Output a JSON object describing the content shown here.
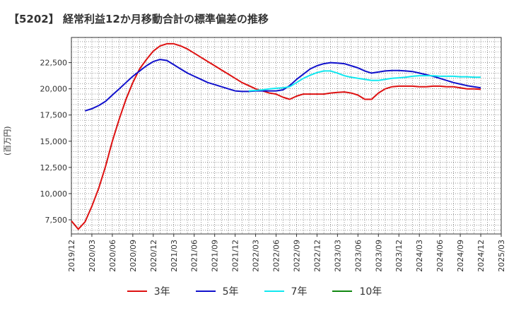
{
  "title": "【5202】 経常利益12か月移動合計の標準偏差の推移",
  "ylabel": "(百万円)",
  "chart_data": {
    "type": "line",
    "title": "【5202】 経常利益12か月移動合計の標準偏差の推移",
    "xlabel": "",
    "ylabel": "(百万円)",
    "x_tick_labels": [
      "2019/12",
      "2020/03",
      "2020/06",
      "2020/09",
      "2020/12",
      "2021/03",
      "2021/06",
      "2021/09",
      "2021/12",
      "2022/03",
      "2022/06",
      "2022/09",
      "2022/12",
      "2023/03",
      "2023/06",
      "2023/09",
      "2023/12",
      "2024/03",
      "2024/06",
      "2024/09",
      "2024/12",
      "2025/03"
    ],
    "x_range": [
      "2019/12",
      "2025/03"
    ],
    "y_ticks": [
      7500,
      10000,
      12500,
      15000,
      17500,
      20000,
      22500
    ],
    "y_tick_labels": [
      "7,500",
      "10,000",
      "12,500",
      "15,000",
      "17,500",
      "20,000",
      "22,500"
    ],
    "ylim": [
      6150,
      24900
    ],
    "grid": true,
    "legend_position": "bottom",
    "series": [
      {
        "name": "3年",
        "color": "#dd1111",
        "points": [
          [
            "2019/12",
            7400
          ],
          [
            "2020/01",
            6600
          ],
          [
            "2020/02",
            7300
          ],
          [
            "2020/03",
            8800
          ],
          [
            "2020/04",
            10500
          ],
          [
            "2020/05",
            12600
          ],
          [
            "2020/06",
            15000
          ],
          [
            "2020/07",
            17100
          ],
          [
            "2020/08",
            19000
          ],
          [
            "2020/09",
            20600
          ],
          [
            "2020/10",
            21900
          ],
          [
            "2020/11",
            22800
          ],
          [
            "2020/12",
            23600
          ],
          [
            "2021/01",
            24100
          ],
          [
            "2021/02",
            24300
          ],
          [
            "2021/03",
            24300
          ],
          [
            "2021/04",
            24100
          ],
          [
            "2021/05",
            23800
          ],
          [
            "2021/06",
            23400
          ],
          [
            "2021/07",
            23000
          ],
          [
            "2021/08",
            22600
          ],
          [
            "2021/09",
            22200
          ],
          [
            "2021/10",
            21800
          ],
          [
            "2021/11",
            21400
          ],
          [
            "2021/12",
            21000
          ],
          [
            "2022/01",
            20600
          ],
          [
            "2022/02",
            20300
          ],
          [
            "2022/03",
            20000
          ],
          [
            "2022/04",
            19800
          ],
          [
            "2022/05",
            19600
          ],
          [
            "2022/06",
            19500
          ],
          [
            "2022/07",
            19200
          ],
          [
            "2022/08",
            19000
          ],
          [
            "2022/09",
            19300
          ],
          [
            "2022/10",
            19500
          ],
          [
            "2022/11",
            19500
          ],
          [
            "2022/12",
            19500
          ],
          [
            "2023/01",
            19500
          ],
          [
            "2023/02",
            19600
          ],
          [
            "2023/03",
            19650
          ],
          [
            "2023/04",
            19700
          ],
          [
            "2023/05",
            19600
          ],
          [
            "2023/06",
            19400
          ],
          [
            "2023/07",
            19000
          ],
          [
            "2023/08",
            19000
          ],
          [
            "2023/09",
            19600
          ],
          [
            "2023/10",
            20000
          ],
          [
            "2023/11",
            20200
          ],
          [
            "2023/12",
            20250
          ],
          [
            "2024/01",
            20250
          ],
          [
            "2024/02",
            20250
          ],
          [
            "2024/03",
            20200
          ],
          [
            "2024/04",
            20200
          ],
          [
            "2024/05",
            20250
          ],
          [
            "2024/06",
            20250
          ],
          [
            "2024/07",
            20200
          ],
          [
            "2024/08",
            20200
          ],
          [
            "2024/09",
            20100
          ],
          [
            "2024/10",
            20000
          ],
          [
            "2024/11",
            20000
          ],
          [
            "2024/12",
            19950
          ]
        ]
      },
      {
        "name": "5年",
        "color": "#1111cc",
        "points": [
          [
            "2020/02",
            17900
          ],
          [
            "2020/03",
            18100
          ],
          [
            "2020/04",
            18400
          ],
          [
            "2020/05",
            18800
          ],
          [
            "2020/06",
            19400
          ],
          [
            "2020/07",
            20000
          ],
          [
            "2020/08",
            20600
          ],
          [
            "2020/09",
            21200
          ],
          [
            "2020/10",
            21700
          ],
          [
            "2020/11",
            22200
          ],
          [
            "2020/12",
            22600
          ],
          [
            "2021/01",
            22800
          ],
          [
            "2021/02",
            22700
          ],
          [
            "2021/03",
            22300
          ],
          [
            "2021/04",
            21900
          ],
          [
            "2021/05",
            21500
          ],
          [
            "2021/06",
            21200
          ],
          [
            "2021/07",
            20900
          ],
          [
            "2021/08",
            20600
          ],
          [
            "2021/09",
            20400
          ],
          [
            "2021/10",
            20200
          ],
          [
            "2021/11",
            20000
          ],
          [
            "2021/12",
            19800
          ],
          [
            "2022/01",
            19750
          ],
          [
            "2022/02",
            19750
          ],
          [
            "2022/03",
            19800
          ],
          [
            "2022/04",
            19800
          ],
          [
            "2022/05",
            19800
          ],
          [
            "2022/06",
            19800
          ],
          [
            "2022/07",
            19900
          ],
          [
            "2022/08",
            20300
          ],
          [
            "2022/09",
            20900
          ],
          [
            "2022/10",
            21400
          ],
          [
            "2022/11",
            21900
          ],
          [
            "2022/12",
            22200
          ],
          [
            "2023/01",
            22400
          ],
          [
            "2023/02",
            22500
          ],
          [
            "2023/03",
            22450
          ],
          [
            "2023/04",
            22400
          ],
          [
            "2023/05",
            22200
          ],
          [
            "2023/06",
            22000
          ],
          [
            "2023/07",
            21700
          ],
          [
            "2023/08",
            21500
          ],
          [
            "2023/09",
            21600
          ],
          [
            "2023/10",
            21700
          ],
          [
            "2023/11",
            21750
          ],
          [
            "2023/12",
            21750
          ],
          [
            "2024/01",
            21700
          ],
          [
            "2024/02",
            21650
          ],
          [
            "2024/03",
            21500
          ],
          [
            "2024/04",
            21350
          ],
          [
            "2024/05",
            21200
          ],
          [
            "2024/06",
            21000
          ],
          [
            "2024/07",
            20800
          ],
          [
            "2024/08",
            20600
          ],
          [
            "2024/09",
            20450
          ],
          [
            "2024/10",
            20300
          ],
          [
            "2024/11",
            20200
          ],
          [
            "2024/12",
            20100
          ]
        ]
      },
      {
        "name": "7年",
        "color": "#11e8f0",
        "points": [
          [
            "2022/02",
            19800
          ],
          [
            "2022/03",
            19850
          ],
          [
            "2022/04",
            19900
          ],
          [
            "2022/05",
            20000
          ],
          [
            "2022/06",
            20050
          ],
          [
            "2022/07",
            20100
          ],
          [
            "2022/08",
            20200
          ],
          [
            "2022/09",
            20600
          ],
          [
            "2022/10",
            21000
          ],
          [
            "2022/11",
            21300
          ],
          [
            "2022/12",
            21550
          ],
          [
            "2023/01",
            21700
          ],
          [
            "2023/02",
            21700
          ],
          [
            "2023/03",
            21500
          ],
          [
            "2023/04",
            21250
          ],
          [
            "2023/05",
            21100
          ],
          [
            "2023/06",
            21000
          ],
          [
            "2023/07",
            20900
          ],
          [
            "2023/08",
            20800
          ],
          [
            "2023/09",
            20800
          ],
          [
            "2023/10",
            20900
          ],
          [
            "2023/11",
            21000
          ],
          [
            "2023/12",
            21050
          ],
          [
            "2024/01",
            21100
          ],
          [
            "2024/02",
            21200
          ],
          [
            "2024/03",
            21250
          ],
          [
            "2024/04",
            21250
          ],
          [
            "2024/05",
            21250
          ],
          [
            "2024/06",
            21200
          ],
          [
            "2024/07",
            21200
          ],
          [
            "2024/08",
            21200
          ],
          [
            "2024/09",
            21150
          ],
          [
            "2024/10",
            21150
          ],
          [
            "2024/11",
            21100
          ],
          [
            "2024/12",
            21100
          ]
        ]
      },
      {
        "name": "10年",
        "color": "#118811",
        "points": []
      }
    ]
  }
}
